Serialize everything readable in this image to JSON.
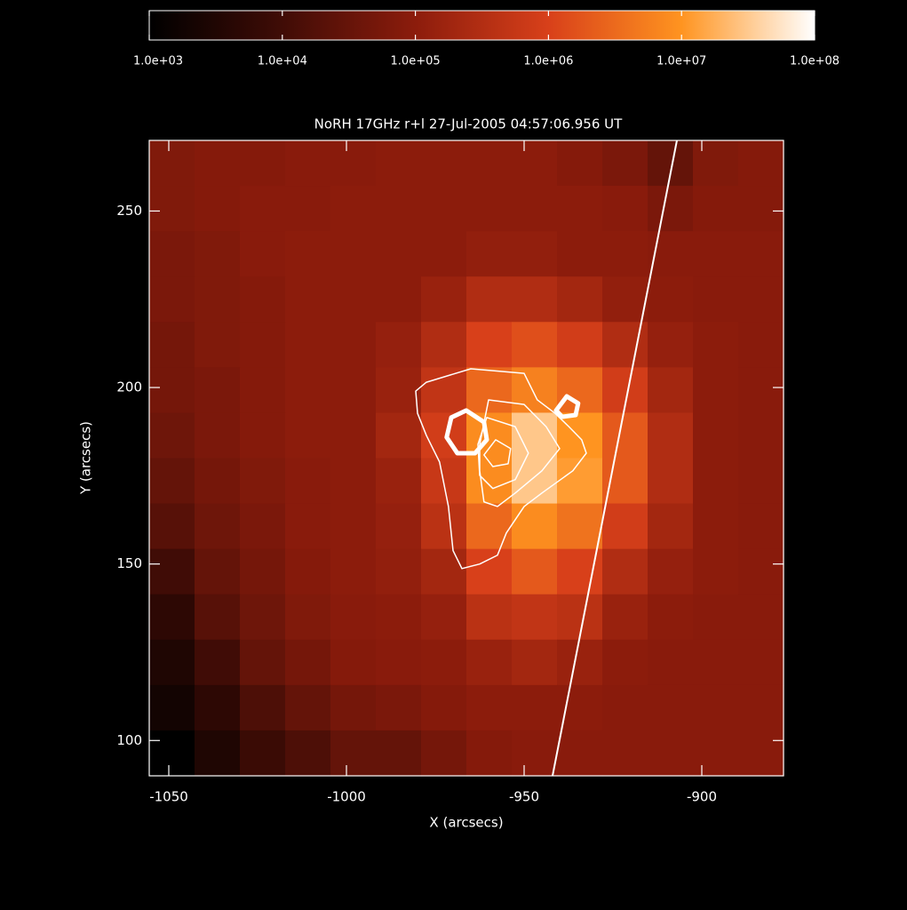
{
  "chart_data": {
    "type": "heatmap",
    "title": "NoRH 17GHz r+l 27-Jul-2005 04:57:06.956 UT",
    "xlabel": "X (arcsecs)",
    "ylabel": "Y (arcsecs)",
    "xlim": [
      -1055.5,
      -877
    ],
    "ylim": [
      90,
      270
    ],
    "xticks": [
      -1050,
      -1000,
      -950,
      -900
    ],
    "yticks": [
      100,
      150,
      200,
      250
    ],
    "colormap": [
      "#000000",
      "#400c06",
      "#8c1c0c",
      "#d8401a",
      "#ff9420",
      "#ffffff"
    ],
    "colorbar": {
      "lim": [
        1000,
        100000000
      ],
      "log": true,
      "ticks": [
        {
          "value": 1000,
          "label": "1.0e+03"
        },
        {
          "value": 10000,
          "label": "1.0e+04"
        },
        {
          "value": 100000,
          "label": "1.0e+05"
        },
        {
          "value": 1000000,
          "label": "1.0e+06"
        },
        {
          "value": 10000000,
          "label": "1.0e+07"
        },
        {
          "value": 100000000,
          "label": "1.0e+08"
        }
      ]
    },
    "z": [
      [
        70000.0,
        80000.0,
        80000.0,
        90000.0,
        90000.0,
        100000.0,
        100000.0,
        100000.0,
        100000.0,
        80000.0,
        60000.0,
        30000.0,
        70000.0,
        80000.0
      ],
      [
        70000.0,
        80000.0,
        90000.0,
        90000.0,
        100000.0,
        100000.0,
        100000.0,
        100000.0,
        100000.0,
        100000.0,
        90000.0,
        60000.0,
        80000.0,
        80000.0
      ],
      [
        60000.0,
        70000.0,
        90000.0,
        100000.0,
        100000.0,
        100000.0,
        100000.0,
        120000.0,
        120000.0,
        100000.0,
        100000.0,
        90000.0,
        90000.0,
        90000.0
      ],
      [
        60000.0,
        70000.0,
        80000.0,
        100000.0,
        100000.0,
        100000.0,
        150000.0,
        300000.0,
        300000.0,
        200000.0,
        120000.0,
        100000.0,
        90000.0,
        90000.0
      ],
      [
        50000.0,
        70000.0,
        80000.0,
        100000.0,
        100000.0,
        130000.0,
        300000.0,
        1000000.0,
        1500000.0,
        800000.0,
        300000.0,
        130000.0,
        100000.0,
        90000.0
      ],
      [
        50000.0,
        60000.0,
        80000.0,
        100000.0,
        100000.0,
        150000.0,
        500000.0,
        3000000.0,
        6000000.0,
        3000000.0,
        800000.0,
        200000.0,
        100000.0,
        90000.0
      ],
      [
        40000.0,
        60000.0,
        80000.0,
        100000.0,
        100000.0,
        200000.0,
        800000.0,
        8000000.0,
        30000000.0,
        10000000.0,
        2000000.0,
        300000.0,
        100000.0,
        90000.0
      ],
      [
        30000.0,
        50000.0,
        70000.0,
        90000.0,
        100000.0,
        150000.0,
        600000.0,
        8000000.0,
        30000000.0,
        12000000.0,
        2000000.0,
        300000.0,
        100000.0,
        90000.0
      ],
      [
        20000.0,
        40000.0,
        60000.0,
        90000.0,
        100000.0,
        130000.0,
        400000.0,
        3000000.0,
        8000000.0,
        4000000.0,
        800000.0,
        200000.0,
        100000.0,
        90000.0
      ],
      [
        10000.0,
        30000.0,
        50000.0,
        80000.0,
        100000.0,
        120000.0,
        200000.0,
        1000000.0,
        2000000.0,
        1000000.0,
        300000.0,
        130000.0,
        100000.0,
        90000.0
      ],
      [
        5000.0,
        20000.0,
        40000.0,
        70000.0,
        90000.0,
        100000.0,
        130000.0,
        400000.0,
        500000.0,
        400000.0,
        150000.0,
        100000.0,
        90000.0,
        90000.0
      ],
      [
        3000.0,
        10000.0,
        30000.0,
        50000.0,
        80000.0,
        90000.0,
        100000.0,
        150000.0,
        200000.0,
        150000.0,
        100000.0,
        90000.0,
        90000.0,
        90000.0
      ],
      [
        2000.0,
        5000.0,
        15000.0,
        30000.0,
        50000.0,
        60000.0,
        80000.0,
        100000.0,
        100000.0,
        100000.0,
        90000.0,
        90000.0,
        90000.0,
        90000.0
      ],
      [
        1000.0,
        3000.0,
        8000.0,
        15000.0,
        30000.0,
        30000.0,
        50000.0,
        80000.0,
        90000.0,
        90000.0,
        90000.0,
        90000.0,
        90000.0,
        90000.0
      ]
    ],
    "contour_color": "#ffffff",
    "contours": [
      {
        "thick": false,
        "x": [
          -977.5,
          -965,
          -950,
          -946.3,
          -941.3,
          -937.5,
          -933.8,
          -932.5,
          -936.3,
          -945,
          -950,
          -955,
          -957.5,
          -962.5,
          -967.5,
          -970,
          -971.3,
          -973.8,
          -977.5,
          -980,
          -980.5
        ],
        "y": [
          201.5,
          205.3,
          204,
          196.5,
          192.7,
          189,
          185.2,
          181.4,
          176.4,
          170.1,
          166.3,
          158.8,
          152.5,
          150,
          148.7,
          153.8,
          166.3,
          178.9,
          186.4,
          192.7,
          199
        ]
      },
      {
        "thick": false,
        "x": [
          -960,
          -950,
          -943.8,
          -940,
          -945,
          -952.5,
          -957.5,
          -961.3,
          -962.5,
          -962.5
        ],
        "y": [
          196.5,
          195.2,
          188.9,
          182.7,
          176.4,
          170.1,
          166.3,
          167.6,
          176.4,
          183.9
        ]
      },
      {
        "thick": false,
        "x": [
          -960.5,
          -952.5,
          -948.8,
          -952.5,
          -958.8,
          -962.5,
          -963
        ],
        "y": [
          191.5,
          188.9,
          181.4,
          173.9,
          171.4,
          175.1,
          183.9
        ]
      },
      {
        "thick": false,
        "x": [
          -958,
          -953.8,
          -954.5,
          -958.8,
          -961.3
        ],
        "y": [
          185.2,
          182.7,
          178.4,
          177.6,
          180.9
        ]
      },
      {
        "thick": true,
        "x": [
          -966.3,
          -961.3,
          -960.5,
          -963.8,
          -968.8,
          -971.8,
          -970.5
        ],
        "y": [
          193.5,
          190.2,
          185.2,
          181.4,
          181.4,
          185.9,
          191.5
        ]
      },
      {
        "thick": true,
        "x": [
          -938,
          -934.8,
          -935.5,
          -939.3,
          -941
        ],
        "y": [
          197.5,
          195.5,
          192.2,
          191.7,
          193.5
        ]
      }
    ],
    "limb": {
      "x": [
        -907,
        -942
      ],
      "y": [
        270,
        90
      ]
    }
  }
}
